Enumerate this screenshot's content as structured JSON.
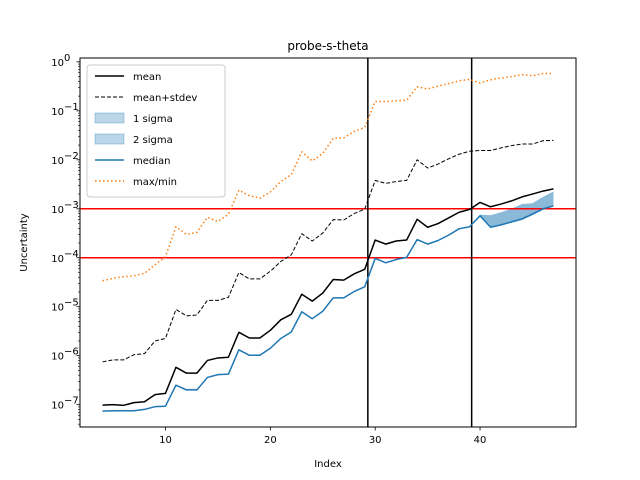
{
  "chart_data": {
    "type": "line",
    "title": "probe-s-theta",
    "xlabel": "Index",
    "ylabel": "Uncertainty",
    "yscale": "log",
    "xlim": [
      1.85,
      49.15
    ],
    "ylim": [
      3.5e-08,
      1.2
    ],
    "x_ticks": [
      10,
      20,
      30,
      40
    ],
    "y_ticks": [
      {
        "value": 1e-07,
        "label": "10",
        "exp": "−7"
      },
      {
        "value": 1e-06,
        "label": "10",
        "exp": "−6"
      },
      {
        "value": 1e-05,
        "label": "10",
        "exp": "−5"
      },
      {
        "value": 0.0001,
        "label": "10",
        "exp": "−4"
      },
      {
        "value": 0.001,
        "label": "10",
        "exp": "−3"
      },
      {
        "value": 0.01,
        "label": "10",
        "exp": "−2"
      },
      {
        "value": 0.1,
        "label": "10",
        "exp": "−1"
      },
      {
        "value": 1,
        "label": "10",
        "exp": "0"
      }
    ],
    "legend_position": "top-left",
    "grid": false,
    "x": [
      4,
      5,
      6,
      7,
      8,
      9,
      10,
      11,
      12,
      13,
      14,
      15,
      16,
      17,
      18,
      19,
      20,
      21,
      22,
      23,
      24,
      25,
      26,
      27,
      28,
      29,
      30,
      31,
      32,
      33,
      34,
      35,
      36,
      37,
      38,
      39,
      40,
      41,
      42,
      43,
      44,
      45,
      46,
      47
    ],
    "series": [
      {
        "name": "mean",
        "color": "#000000",
        "style": "solid",
        "values": [
          9.8e-08,
          1e-07,
          9.7e-08,
          1.1e-07,
          1.15e-07,
          1.6e-07,
          1.7e-07,
          5.8e-07,
          4.4e-07,
          4.4e-07,
          8e-07,
          9e-07,
          9.3e-07,
          3e-06,
          2.3e-06,
          2.3e-06,
          3.3e-06,
          5.4e-06,
          7e-06,
          1.8e-05,
          1.3e-05,
          1.9e-05,
          3.6e-05,
          3.5e-05,
          4.7e-05,
          5.8e-05,
          0.00023,
          0.00019,
          0.00022,
          0.00023,
          0.00061,
          0.00042,
          0.0005,
          0.00065,
          0.00085,
          0.00097,
          0.00135,
          0.0011,
          0.00125,
          0.00145,
          0.00175,
          0.002,
          0.0023,
          0.00255
        ]
      },
      {
        "name": "mean+stdev",
        "color": "#000000",
        "style": "dashed",
        "values": [
          7.5e-07,
          8.2e-07,
          8.2e-07,
          1.05e-06,
          1.1e-06,
          2e-06,
          2.25e-06,
          8.8e-06,
          6.5e-06,
          6.8e-06,
          1.35e-05,
          1.35e-05,
          1.55e-05,
          5e-05,
          3.7e-05,
          3.7e-05,
          5.3e-05,
          8.4e-05,
          0.000115,
          0.00031,
          0.00022,
          0.00032,
          0.0006,
          0.00059,
          0.0008,
          0.00098,
          0.0038,
          0.0033,
          0.0036,
          0.0038,
          0.01,
          0.0068,
          0.0082,
          0.0105,
          0.013,
          0.015,
          0.0155,
          0.0155,
          0.0175,
          0.0195,
          0.021,
          0.021,
          0.0245,
          0.025
        ]
      },
      {
        "name": "1 sigma",
        "color": "#1f77b4",
        "style": "band",
        "lower": [
          7.3e-08,
          7.4e-08,
          7.4e-08,
          7.4e-08,
          7.9e-08,
          9e-08,
          9.2e-08,
          2.45e-07,
          2e-07,
          2e-07,
          3.5e-07,
          4e-07,
          4.1e-07,
          1.3e-06,
          1e-06,
          1e-06,
          1.4e-06,
          2.2e-06,
          3e-06,
          7.8e-06,
          5.6e-06,
          8e-06,
          1.5e-05,
          1.5e-05,
          2e-05,
          2.5e-05,
          9.5e-05,
          7.8e-05,
          9e-05,
          0.0001,
          0.00023,
          0.000185,
          0.00022,
          0.00028,
          0.00038,
          0.00042,
          0.00068,
          0.00041,
          0.00046,
          0.00052,
          0.00059,
          0.00074,
          0.00095,
          0.0011
        ],
        "upper": [
          7.5e-08,
          7.6e-08,
          7.6e-08,
          7.6e-08,
          8.1e-08,
          9.3e-08,
          9.5e-08,
          2.55e-07,
          2.1e-07,
          2.1e-07,
          3.65e-07,
          4.15e-07,
          4.25e-07,
          1.35e-06,
          1.05e-06,
          1.05e-06,
          1.45e-06,
          2.3e-06,
          3.1e-06,
          8.1e-06,
          5.85e-06,
          8.3e-06,
          1.55e-05,
          1.55e-05,
          2.1e-05,
          2.6e-05,
          9.9e-05,
          8.1e-05,
          9.4e-05,
          0.000105,
          0.00024,
          0.000195,
          0.00023,
          0.000295,
          0.0004,
          0.00044,
          0.00076,
          0.00074,
          0.00085,
          0.001,
          0.00125,
          0.0013,
          0.00175,
          0.00225
        ]
      },
      {
        "name": "2 sigma",
        "color": "#1f77b4",
        "style": "band",
        "lower": [
          7.3e-08,
          7.4e-08,
          7.4e-08,
          7.4e-08,
          7.9e-08,
          9e-08,
          9.2e-08,
          2.45e-07,
          2e-07,
          2e-07,
          3.5e-07,
          4e-07,
          4.1e-07,
          1.3e-06,
          1e-06,
          1e-06,
          1.4e-06,
          2.2e-06,
          3e-06,
          7.8e-06,
          5.6e-06,
          8e-06,
          1.5e-05,
          1.5e-05,
          2e-05,
          2.5e-05,
          9.5e-05,
          7.8e-05,
          9e-05,
          0.0001,
          0.00023,
          0.000185,
          0.00022,
          0.00028,
          0.00038,
          0.00042,
          0.00068,
          0.00041,
          0.00046,
          0.00052,
          0.00059,
          0.00074,
          0.00095,
          0.0011
        ],
        "upper": [
          7.5e-08,
          7.6e-08,
          7.6e-08,
          7.6e-08,
          8.1e-08,
          9.3e-08,
          9.5e-08,
          2.55e-07,
          2.1e-07,
          2.1e-07,
          3.65e-07,
          4.15e-07,
          4.25e-07,
          1.35e-06,
          1.05e-06,
          1.05e-06,
          1.45e-06,
          2.3e-06,
          3.1e-06,
          8.1e-06,
          5.85e-06,
          8.3e-06,
          1.55e-05,
          1.55e-05,
          2.1e-05,
          2.6e-05,
          9.9e-05,
          8.1e-05,
          9.4e-05,
          0.000105,
          0.00024,
          0.000195,
          0.00023,
          0.000295,
          0.0004,
          0.00044,
          0.00076,
          0.00074,
          0.00085,
          0.001,
          0.00125,
          0.0013,
          0.00175,
          0.00225
        ]
      },
      {
        "name": "median",
        "color": "#1f77b4",
        "style": "solid",
        "values": [
          7.4e-08,
          7.5e-08,
          7.5e-08,
          7.5e-08,
          8e-08,
          9.1e-08,
          9.3e-08,
          2.5e-07,
          2e-07,
          2e-07,
          3.6e-07,
          4.1e-07,
          4.2e-07,
          1.32e-06,
          1.02e-06,
          1.02e-06,
          1.42e-06,
          2.25e-06,
          3.05e-06,
          7.9e-06,
          5.7e-06,
          8.1e-06,
          1.52e-05,
          1.52e-05,
          2.05e-05,
          2.55e-05,
          9.7e-05,
          7.9e-05,
          9.2e-05,
          0.000102,
          0.000235,
          0.00019,
          0.000225,
          0.00029,
          0.00039,
          0.00043,
          0.00072,
          0.00042,
          0.00047,
          0.00054,
          0.00062,
          0.00078,
          0.001,
          0.00115
        ]
      },
      {
        "name": "max/min",
        "color": "#ff7f0e",
        "style": "dotted",
        "values": [
          3.4e-05,
          3.8e-05,
          4.1e-05,
          4.3e-05,
          4.8e-05,
          7.2e-05,
          0.000105,
          0.00043,
          0.0003,
          0.00033,
          0.00067,
          0.00055,
          0.00077,
          0.0024,
          0.00185,
          0.00165,
          0.0022,
          0.0036,
          0.005,
          0.0145,
          0.0095,
          0.0135,
          0.0275,
          0.028,
          0.038,
          0.046,
          0.155,
          0.155,
          0.16,
          0.165,
          0.31,
          0.28,
          0.32,
          0.36,
          0.41,
          0.44,
          0.37,
          0.43,
          0.47,
          0.5,
          0.55,
          0.52,
          0.58,
          0.58
        ]
      }
    ],
    "reference_lines": [
      {
        "orientation": "horizontal",
        "value": 0.001,
        "color": "#ff0000"
      },
      {
        "orientation": "horizontal",
        "value": 0.0001,
        "color": "#ff0000"
      },
      {
        "orientation": "vertical",
        "value": 29.3,
        "color": "#000000"
      },
      {
        "orientation": "vertical",
        "value": 39.2,
        "color": "#000000"
      }
    ]
  }
}
